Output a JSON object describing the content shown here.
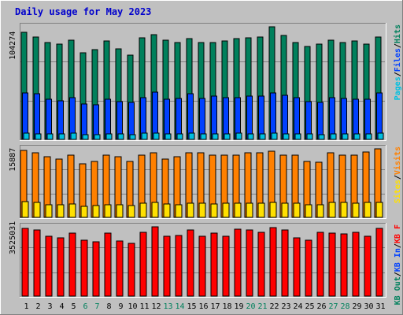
{
  "title": "Daily usage for May 2023",
  "colors": {
    "background": "#c0c0c0",
    "plot_bg": "#c0c0c0",
    "title": "#0000cc",
    "hits": "#00805c",
    "files": "#0040ff",
    "pages": "#00c0e0",
    "visits": "#ff8000",
    "sites": "#ffe000",
    "kbin": "#ff0000",
    "weekend": "#00805c",
    "weekday": "#000000"
  },
  "chart_data": [
    {
      "type": "bar",
      "panel": "top",
      "ymax_label": "104274",
      "ymax": 104274,
      "categories": [
        "1",
        "2",
        "3",
        "4",
        "5",
        "6",
        "7",
        "8",
        "9",
        "10",
        "11",
        "12",
        "13",
        "14",
        "15",
        "16",
        "17",
        "18",
        "19",
        "20",
        "21",
        "22",
        "23",
        "24",
        "25",
        "26",
        "27",
        "28",
        "29",
        "30",
        "31"
      ],
      "weekend_days": [
        "6",
        "7",
        "13",
        "14",
        "20",
        "21",
        "27",
        "28"
      ],
      "legend": [
        {
          "label": "Hits",
          "color_key": "hits"
        },
        {
          "label": "Files",
          "color_key": "files"
        },
        {
          "label": "Pages",
          "color_key": "pages"
        }
      ],
      "series": [
        {
          "name": "Hits",
          "values": [
            99000,
            95000,
            90000,
            88000,
            92000,
            80000,
            83000,
            91000,
            84000,
            78000,
            94000,
            97000,
            92000,
            90000,
            93000,
            90000,
            90000,
            91000,
            93000,
            94000,
            95000,
            104274,
            96000,
            90000,
            86000,
            88000,
            92000,
            90000,
            91000,
            88000,
            95000
          ]
        },
        {
          "name": "Files",
          "values": [
            43000,
            42000,
            37000,
            36000,
            39000,
            33000,
            32000,
            37000,
            35000,
            34000,
            39000,
            44000,
            37000,
            38000,
            42000,
            38000,
            40000,
            39000,
            39000,
            40000,
            40000,
            43000,
            41000,
            39000,
            35000,
            34000,
            39000,
            38000,
            37000,
            37000,
            43000
          ]
        },
        {
          "name": "Pages",
          "values": [
            6000,
            5000,
            5000,
            5000,
            5500,
            4500,
            4500,
            5000,
            5000,
            4500,
            5500,
            6000,
            5000,
            5000,
            5500,
            5000,
            5000,
            5000,
            5500,
            5000,
            5000,
            5500,
            5000,
            5000,
            5000,
            4500,
            5000,
            5000,
            5000,
            5000,
            5500
          ]
        }
      ]
    },
    {
      "type": "bar",
      "panel": "middle",
      "ymax_label": "15887",
      "ymax": 15887,
      "legend": [
        {
          "label": "Visits",
          "color_key": "visits"
        },
        {
          "label": "Sites",
          "color_key": "sites"
        }
      ],
      "series": [
        {
          "name": "Visits",
          "values": [
            15500,
            15000,
            14000,
            13500,
            14500,
            12500,
            13000,
            14500,
            14000,
            13000,
            14500,
            15000,
            13500,
            14000,
            15000,
            15000,
            14500,
            14500,
            14500,
            15000,
            15000,
            15400,
            14500,
            14500,
            13000,
            12700,
            15000,
            14500,
            14500,
            15200,
            15887
          ]
        },
        {
          "name": "Sites",
          "values": [
            3600,
            3400,
            3000,
            3000,
            3100,
            2600,
            2800,
            3000,
            3000,
            2800,
            3300,
            3400,
            3100,
            3000,
            3200,
            3300,
            3100,
            3200,
            3200,
            3300,
            3300,
            3500,
            3300,
            3200,
            3000,
            2900,
            3400,
            3500,
            3300,
            3500,
            3500
          ]
        }
      ]
    },
    {
      "type": "bar",
      "panel": "bottom",
      "ymax_label": "3525031",
      "ymax": 3525031,
      "legend": [
        {
          "label": "KB F",
          "color_key": "kbin"
        },
        {
          "label": "KB In",
          "color_key": "files"
        },
        {
          "label": "KB Out",
          "color_key": "hits"
        }
      ],
      "series": [
        {
          "name": "KB F",
          "values": [
            3450000,
            3350000,
            3050000,
            2950000,
            3200000,
            2850000,
            2750000,
            3200000,
            2800000,
            2700000,
            3250000,
            3525031,
            3050000,
            3100000,
            3350000,
            3050000,
            3200000,
            3050000,
            3400000,
            3350000,
            3250000,
            3500000,
            3350000,
            2950000,
            2850000,
            3250000,
            3200000,
            3150000,
            3250000,
            3050000,
            3450000
          ]
        }
      ]
    }
  ]
}
